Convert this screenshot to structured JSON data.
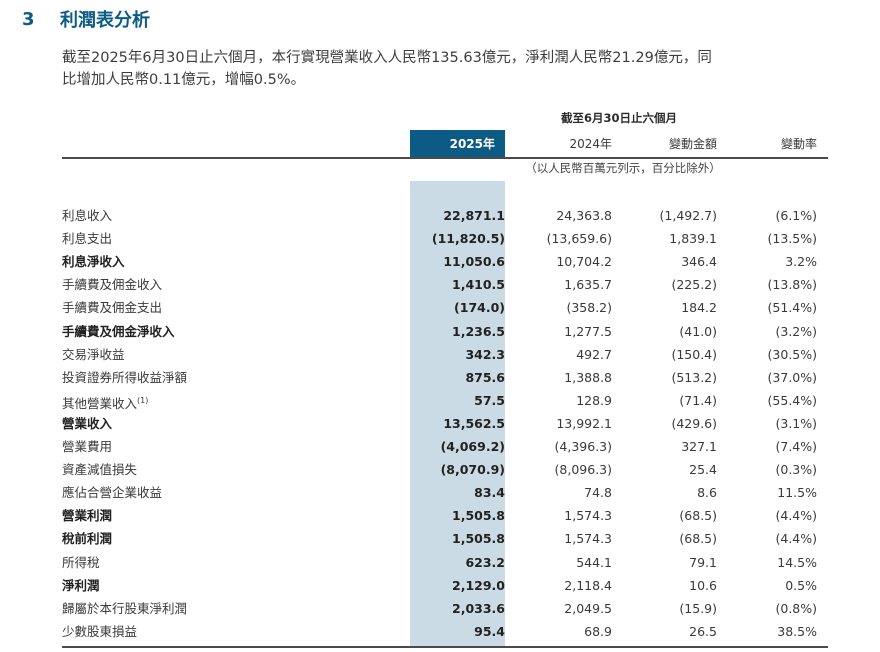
{
  "section": {
    "number": "3",
    "title": "利潤表分析"
  },
  "intro_lines": [
    "截至2025年6月30日止六個月，本行實現營業收入人民幣135.63億元，淨利潤人民幣21.29億元，同",
    "比增加人民幣0.11億元，增幅0.5%。"
  ],
  "table": {
    "period_header": "截至6月30日止六個月",
    "columns": [
      "2025年",
      "2024年",
      "變動金額",
      "變動率"
    ],
    "unit_note": "（以人民幣百萬元列示，百分比除外）",
    "rows": [
      {
        "label": "利息收入",
        "v2025": "22,871.1",
        "v2024": "24,363.8",
        "change": "(1,492.7)",
        "rate": "(6.1%)"
      },
      {
        "label": "利息支出",
        "v2025": "(11,820.5)",
        "v2024": "(13,659.6)",
        "change": "1,839.1",
        "rate": "(13.5%)"
      },
      {
        "label": "利息淨收入",
        "v2025": "11,050.6",
        "v2024": "10,704.2",
        "change": "346.4",
        "rate": "3.2%",
        "bold": true
      },
      {
        "label": "手續費及佣金收入",
        "v2025": "1,410.5",
        "v2024": "1,635.7",
        "change": "(225.2)",
        "rate": "(13.8%)"
      },
      {
        "label": "手續費及佣金支出",
        "v2025": "(174.0)",
        "v2024": "(358.2)",
        "change": "184.2",
        "rate": "(51.4%)"
      },
      {
        "label": "手續費及佣金淨收入",
        "v2025": "1,236.5",
        "v2024": "1,277.5",
        "change": "(41.0)",
        "rate": "(3.2%)",
        "bold": true
      },
      {
        "label": "交易淨收益",
        "v2025": "342.3",
        "v2024": "492.7",
        "change": "(150.4)",
        "rate": "(30.5%)"
      },
      {
        "label": "投資證券所得收益淨額",
        "v2025": "875.6",
        "v2024": "1,388.8",
        "change": "(513.2)",
        "rate": "(37.0%)"
      },
      {
        "label": "其他營業收入",
        "footnote": "(1)",
        "v2025": "57.5",
        "v2024": "128.9",
        "change": "(71.4)",
        "rate": "(55.4%)"
      },
      {
        "label": "營業收入",
        "v2025": "13,562.5",
        "v2024": "13,992.1",
        "change": "(429.6)",
        "rate": "(3.1%)",
        "bold": true
      },
      {
        "label": "營業費用",
        "v2025": "(4,069.2)",
        "v2024": "(4,396.3)",
        "change": "327.1",
        "rate": "(7.4%)"
      },
      {
        "label": "資產減值損失",
        "v2025": "(8,070.9)",
        "v2024": "(8,096.3)",
        "change": "25.4",
        "rate": "(0.3%)"
      },
      {
        "label": "應佔合營企業收益",
        "v2025": "83.4",
        "v2024": "74.8",
        "change": "8.6",
        "rate": "11.5%"
      },
      {
        "label": "營業利潤",
        "v2025": "1,505.8",
        "v2024": "1,574.3",
        "change": "(68.5)",
        "rate": "(4.4%)",
        "bold": true
      },
      {
        "label": "稅前利潤",
        "v2025": "1,505.8",
        "v2024": "1,574.3",
        "change": "(68.5)",
        "rate": "(4.4%)",
        "bold": true
      },
      {
        "label": "所得稅",
        "v2025": "623.2",
        "v2024": "544.1",
        "change": "79.1",
        "rate": "14.5%"
      },
      {
        "label": "淨利潤",
        "v2025": "2,129.0",
        "v2024": "2,118.4",
        "change": "10.6",
        "rate": "0.5%",
        "bold": true
      },
      {
        "label": "歸屬於本行股東淨利潤",
        "v2025": "2,033.6",
        "v2024": "2,049.5",
        "change": "(15.9)",
        "rate": "(0.8%)"
      },
      {
        "label": "少數股東損益",
        "v2025": "95.4",
        "v2024": "68.9",
        "change": "26.5",
        "rate": "38.5%"
      }
    ]
  }
}
